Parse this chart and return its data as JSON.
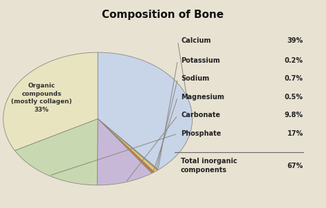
{
  "title": "Composition of Bone",
  "title_fontsize": 11,
  "header_color": "#d4cbb0",
  "figure_bg": "#e8e2d2",
  "slices": [
    {
      "label": "Calcium",
      "pct_label": "39%",
      "value": 39,
      "color": "#c8d4e8"
    },
    {
      "label": "Potassium",
      "pct_label": "0.2%",
      "value": 0.2,
      "color": "#c8a8b0"
    },
    {
      "label": "Sodium",
      "pct_label": "0.7%",
      "value": 0.7,
      "color": "#e0c870"
    },
    {
      "label": "Magnesium",
      "pct_label": "0.5%",
      "value": 0.5,
      "color": "#c87840"
    },
    {
      "label": "Carbonate",
      "pct_label": "9.8%",
      "value": 9.8,
      "color": "#c8b8d8"
    },
    {
      "label": "Phosphate",
      "pct_label": "17%",
      "value": 17,
      "color": "#c8d8b0"
    },
    {
      "label": "Organic compounds\n(mostly collagen)\n33%",
      "pct_label": "33%",
      "value": 33,
      "color": "#e8e4c0"
    }
  ],
  "note_label": "Total inorganic\ncomponents",
  "note_pct": "67%",
  "startangle": 90
}
